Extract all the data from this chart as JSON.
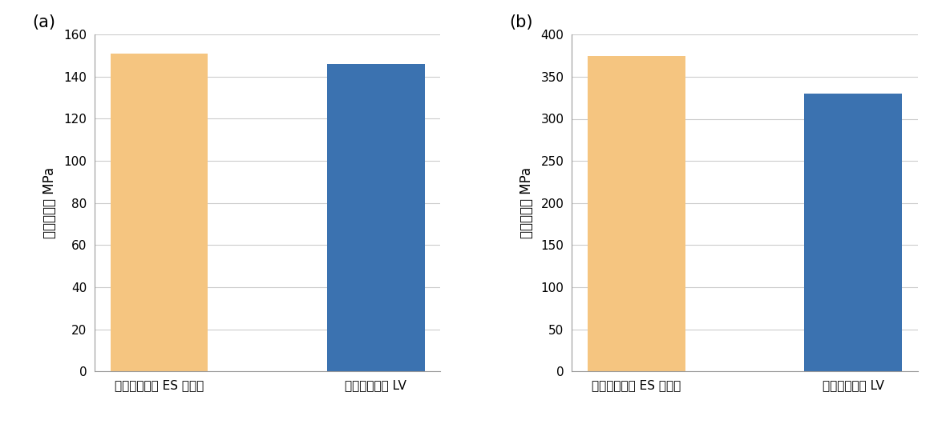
{
  "chart_a": {
    "label": "(a)",
    "categories": [
      "マジェスティ ES フロー",
      "マジェスティ LV"
    ],
    "values": [
      151,
      146
    ],
    "bar_colors": [
      "#F5C580",
      "#3B72B0"
    ],
    "ylabel": "曲げ強さ／ MPa",
    "ylim": [
      0,
      160
    ],
    "yticks": [
      0,
      20,
      40,
      60,
      80,
      100,
      120,
      140,
      160
    ]
  },
  "chart_b": {
    "label": "(b)",
    "categories": [
      "マジェスティ ES フロー",
      "マジェスティ LV"
    ],
    "values": [
      375,
      330
    ],
    "bar_colors": [
      "#F5C580",
      "#3B72B0"
    ],
    "ylabel": "圧縮強さ／ MPa",
    "ylim": [
      0,
      400
    ],
    "yticks": [
      0,
      50,
      100,
      150,
      200,
      250,
      300,
      350,
      400
    ]
  },
  "background_color": "#ffffff",
  "bar_width": 0.45,
  "label_fontsize": 15,
  "tick_fontsize": 11,
  "ylabel_fontsize": 12,
  "xtick_fontsize": 11,
  "grid_color": "#cccccc",
  "border_color": "#999999"
}
